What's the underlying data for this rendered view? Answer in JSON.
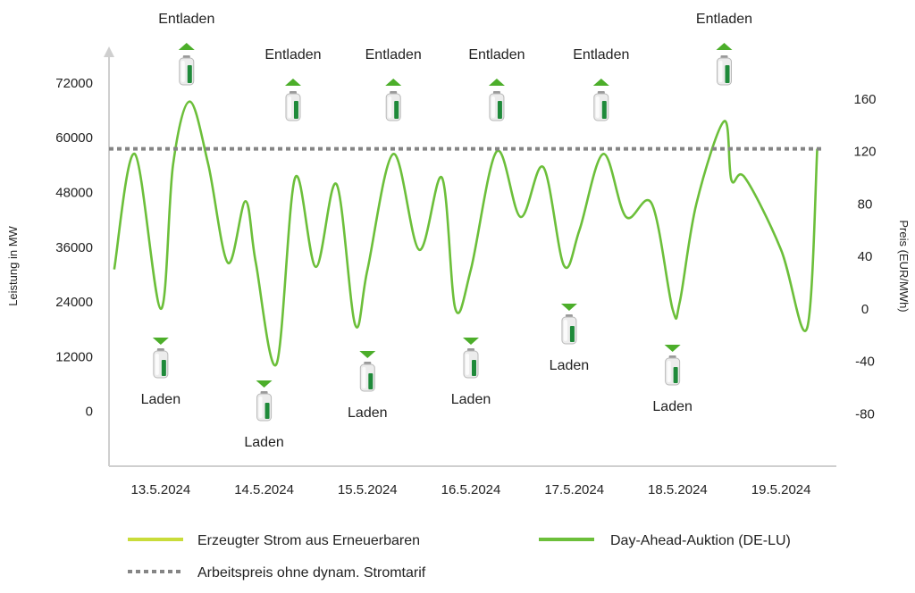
{
  "chart_data": {
    "type": "line",
    "y_left": {
      "label": "Leistung in MW",
      "ticks": [
        "72000",
        "60000",
        "48000",
        "36000",
        "24000",
        "12000",
        "0"
      ],
      "tick_values": [
        72000,
        60000,
        48000,
        36000,
        24000,
        12000,
        0
      ],
      "ylim": [
        -12000,
        80000
      ]
    },
    "y_right": {
      "label": "Preis (EUR/MWh)",
      "ticks": [
        "160",
        "120",
        "80",
        "40",
        "0",
        "-40",
        "-80"
      ],
      "tick_values": [
        160,
        120,
        80,
        40,
        0,
        -40,
        -80
      ],
      "ylim": [
        -120,
        200
      ]
    },
    "x_ticks": [
      {
        "label": "13.5.2024",
        "day": 0.5
      },
      {
        "label": "14.5.2024",
        "day": 1.5
      },
      {
        "label": "15.5.2024",
        "day": 2.5
      },
      {
        "label": "16.5.2024",
        "day": 3.5
      },
      {
        "label": "17.5.2024",
        "day": 4.5
      },
      {
        "label": "18.5.2024",
        "day": 5.5
      },
      {
        "label": "19.5.2024",
        "day": 6.5
      }
    ],
    "xlim": [
      0,
      7
    ],
    "series": [
      {
        "name": "Erzeugter Strom aus Erneuerbaren",
        "axis": "left",
        "color": "#c9dc3a",
        "x": [],
        "values": []
      },
      {
        "name": "Day-Ahead-Auktion (DE-LU)",
        "axis": "right",
        "color": "#6cbf3a",
        "x": [
          0.05,
          0.25,
          0.5,
          0.62,
          0.78,
          0.96,
          1.15,
          1.32,
          1.42,
          1.62,
          1.8,
          2.0,
          2.2,
          2.38,
          2.5,
          2.75,
          3.0,
          3.22,
          3.35,
          3.5,
          3.75,
          3.98,
          4.2,
          4.4,
          4.55,
          4.78,
          5.0,
          5.25,
          5.45,
          5.52,
          5.68,
          5.95,
          6.02,
          6.15,
          6.5,
          6.75,
          6.85
        ],
        "values": [
          30,
          118,
          0,
          110,
          158,
          110,
          35,
          82,
          35,
          -42,
          100,
          32,
          95,
          -12,
          30,
          118,
          45,
          100,
          0,
          30,
          120,
          70,
          108,
          33,
          60,
          118,
          70,
          80,
          0,
          5,
          80,
          143,
          98,
          100,
          45,
          -15,
          122
        ]
      },
      {
        "name": "Arbeitspreis ohne dynam. Stromtarif",
        "axis": "right",
        "color": "#858585",
        "x": [
          0,
          6.9
        ],
        "values": [
          122,
          122
        ]
      }
    ],
    "annotations": [
      {
        "text": "Entladen",
        "kind": "discharge",
        "day": 0.75,
        "level": "high"
      },
      {
        "text": "Entladen",
        "kind": "discharge",
        "day": 1.78,
        "level": "mid"
      },
      {
        "text": "Entladen",
        "kind": "discharge",
        "day": 2.75,
        "level": "mid"
      },
      {
        "text": "Entladen",
        "kind": "discharge",
        "day": 3.75,
        "level": "mid"
      },
      {
        "text": "Entladen",
        "kind": "discharge",
        "day": 4.76,
        "level": "mid"
      },
      {
        "text": "Entladen",
        "kind": "discharge",
        "day": 5.95,
        "level": "high"
      },
      {
        "text": "Laden",
        "kind": "charge",
        "day": 0.5,
        "level": "mid"
      },
      {
        "text": "Laden",
        "kind": "charge",
        "day": 1.5,
        "level": "low"
      },
      {
        "text": "Laden",
        "kind": "charge",
        "day": 2.5,
        "level": "low"
      },
      {
        "text": "Laden",
        "kind": "charge",
        "day": 3.5,
        "level": "mid"
      },
      {
        "text": "Laden",
        "kind": "charge",
        "day": 4.45,
        "level": "high"
      },
      {
        "text": "Laden",
        "kind": "charge",
        "day": 5.45,
        "level": "low"
      }
    ],
    "legend": {
      "placement": "bottom",
      "items": [
        {
          "label": "Erzeugter Strom aus Erneuerbaren",
          "color": "#c9dc3a",
          "style": "solid"
        },
        {
          "label": "Day-Ahead-Auktion (DE-LU)",
          "color": "#6cbf3a",
          "style": "solid"
        },
        {
          "label": "Arbeitspreis ohne dynam. Stromtarif",
          "color": "#858585",
          "style": "dotted"
        }
      ]
    },
    "grid": false
  }
}
